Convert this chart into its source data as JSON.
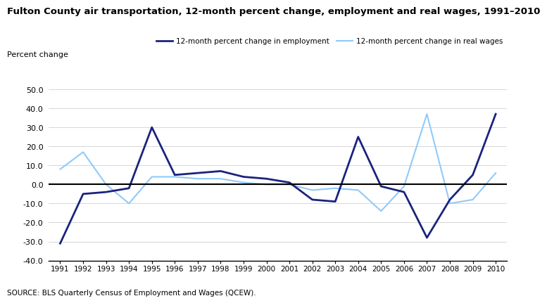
{
  "title": "Fulton County air transportation, 12-month percent change, employment and real wages, 1991–2010",
  "ylabel": "Percent change",
  "source": "SOURCE: BLS Quarterly Census of Employment and Wages (QCEW).",
  "years": [
    1991,
    1992,
    1993,
    1994,
    1995,
    1996,
    1997,
    1998,
    1999,
    2000,
    2001,
    2002,
    2003,
    2004,
    2005,
    2006,
    2007,
    2008,
    2009,
    2010
  ],
  "employment": [
    -31,
    -5,
    -4,
    -2,
    30,
    5,
    6,
    7,
    4,
    3,
    1,
    -8,
    -9,
    25,
    -1,
    -4,
    -28,
    -8,
    5,
    37
  ],
  "real_wages": [
    8,
    17,
    0,
    -10,
    4,
    4,
    3,
    3,
    1,
    0,
    0,
    -3,
    -2,
    -3,
    -14,
    -1,
    37,
    -10,
    -8,
    6
  ],
  "employment_color": "#1a237e",
  "real_wages_color": "#90caf9",
  "ylim_min": -40,
  "ylim_max": 50,
  "yticks": [
    -40,
    -30,
    -20,
    -10,
    0,
    10,
    20,
    30,
    40,
    50
  ],
  "legend_employment": "12-month percent change in employment",
  "legend_real_wages": "12-month percent change in real wages",
  "background_color": "#ffffff",
  "grid_color": "#d0d0d0"
}
